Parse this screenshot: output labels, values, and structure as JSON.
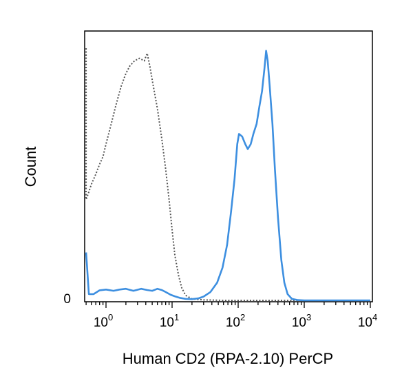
{
  "chart_data": {
    "type": "line",
    "title": "",
    "xlabel": "Human CD2 (RPA-2.10) PerCP",
    "ylabel": "Count",
    "x_scale": "log",
    "xlim": [
      0.5,
      10000
    ],
    "ylim": [
      0,
      100
    ],
    "grid": false,
    "legend": "none",
    "x_ticks": [
      {
        "base": "10",
        "exp": "0",
        "value": 1
      },
      {
        "base": "10",
        "exp": "1",
        "value": 10
      },
      {
        "base": "10",
        "exp": "2",
        "value": 100
      },
      {
        "base": "10",
        "exp": "3",
        "value": 1000
      },
      {
        "base": "10",
        "exp": "4",
        "value": 10000
      }
    ],
    "y_ticks": [
      {
        "label": "0",
        "value": 0
      }
    ],
    "series": [
      {
        "style": "dotted",
        "color": "#555555",
        "points": [
          [
            0.5,
            100
          ],
          [
            0.5,
            40
          ],
          [
            0.55,
            43
          ],
          [
            0.6,
            46
          ],
          [
            0.7,
            50
          ],
          [
            0.8,
            54
          ],
          [
            0.9,
            57
          ],
          [
            1.0,
            62
          ],
          [
            1.2,
            70
          ],
          [
            1.4,
            77
          ],
          [
            1.7,
            85
          ],
          [
            2.0,
            90
          ],
          [
            2.3,
            93
          ],
          [
            2.7,
            95
          ],
          [
            3.2,
            96
          ],
          [
            3.8,
            95
          ],
          [
            4.2,
            98
          ],
          [
            4.6,
            93
          ],
          [
            5.2,
            85
          ],
          [
            6.0,
            76
          ],
          [
            7.0,
            64
          ],
          [
            8.0,
            52
          ],
          [
            9.0,
            40
          ],
          [
            10,
            28
          ],
          [
            11,
            18
          ],
          [
            12.5,
            10
          ],
          [
            14,
            5
          ],
          [
            16,
            2
          ],
          [
            20,
            0.6
          ],
          [
            30,
            0.2
          ],
          [
            60,
            0
          ],
          [
            10000,
            0
          ]
        ]
      },
      {
        "style": "solid",
        "color": "#3d8fe0",
        "points": [
          [
            0.5,
            19
          ],
          [
            0.55,
            2.5
          ],
          [
            0.65,
            2.5
          ],
          [
            0.8,
            4
          ],
          [
            1.0,
            4.3
          ],
          [
            1.3,
            3.8
          ],
          [
            1.6,
            4.3
          ],
          [
            2.0,
            4.6
          ],
          [
            2.6,
            3.8
          ],
          [
            3.4,
            4.6
          ],
          [
            4.2,
            4.1
          ],
          [
            5.0,
            3.8
          ],
          [
            6.0,
            4.6
          ],
          [
            7.0,
            4.1
          ],
          [
            8.0,
            3.3
          ],
          [
            9.5,
            2.2
          ],
          [
            11,
            1.6
          ],
          [
            13,
            1.0
          ],
          [
            16,
            0.6
          ],
          [
            20,
            0.5
          ],
          [
            25,
            0.8
          ],
          [
            30,
            1.5
          ],
          [
            38,
            3.3
          ],
          [
            48,
            7
          ],
          [
            58,
            13
          ],
          [
            68,
            22
          ],
          [
            78,
            35
          ],
          [
            88,
            48
          ],
          [
            97,
            62
          ],
          [
            103,
            66
          ],
          [
            115,
            65
          ],
          [
            128,
            62
          ],
          [
            140,
            60
          ],
          [
            155,
            62
          ],
          [
            170,
            66
          ],
          [
            190,
            70
          ],
          [
            210,
            77
          ],
          [
            230,
            83
          ],
          [
            250,
            92
          ],
          [
            265,
            99
          ],
          [
            280,
            95
          ],
          [
            300,
            85
          ],
          [
            330,
            70
          ],
          [
            360,
            52
          ],
          [
            400,
            33
          ],
          [
            450,
            16
          ],
          [
            500,
            7
          ],
          [
            560,
            2.5
          ],
          [
            650,
            0.6
          ],
          [
            800,
            0.1
          ],
          [
            1000,
            0
          ],
          [
            10000,
            0
          ]
        ]
      }
    ]
  }
}
